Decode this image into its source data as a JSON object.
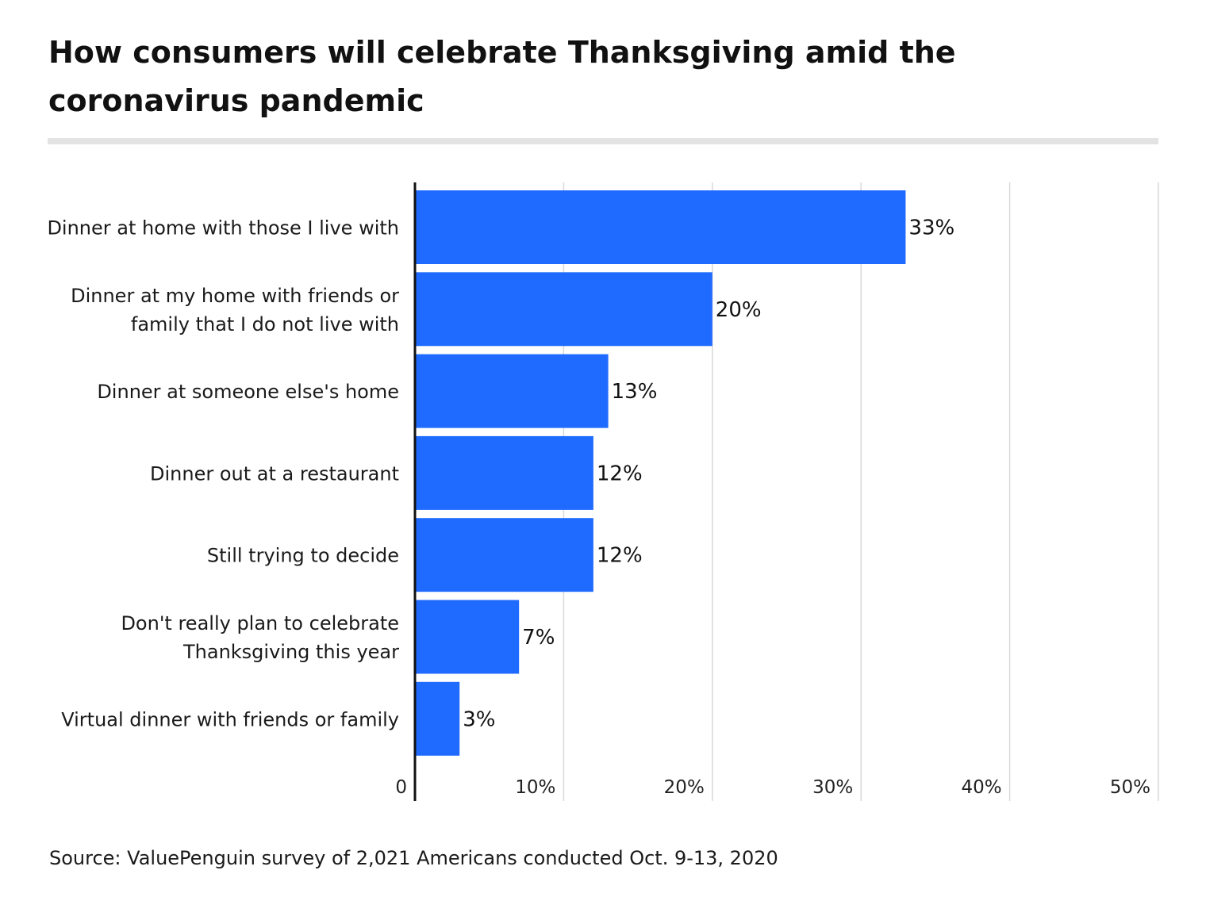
{
  "chart_data": {
    "type": "bar",
    "orientation": "horizontal",
    "title": "How consumers will celebrate Thanksgiving amid the coronavirus pandemic",
    "categories": [
      [
        "Dinner at home with those I live with"
      ],
      [
        "Dinner at my home with friends or",
        "family that I do not live with"
      ],
      [
        "Dinner at someone else's home"
      ],
      [
        "Dinner out at a restaurant"
      ],
      [
        "Still trying to decide"
      ],
      [
        "Don't really plan to celebrate",
        "Thanksgiving this year"
      ],
      [
        "Virtual dinner with friends or family"
      ]
    ],
    "values": [
      33,
      20,
      13,
      12,
      12,
      7,
      3
    ],
    "value_labels": [
      "33%",
      "20%",
      "13%",
      "12%",
      "12%",
      "7%",
      "3%"
    ],
    "xlim": [
      0,
      50
    ],
    "xticks": [
      0,
      10,
      20,
      30,
      40,
      50
    ],
    "xtick_labels": [
      "0",
      "10%",
      "20%",
      "30%",
      "40%",
      "50%"
    ],
    "xlabel": "",
    "ylabel": "",
    "grid": "vertical",
    "bar_color": "#1f6bff",
    "source": "Source: ValuePenguin survey of 2,021 Americans conducted Oct. 9-13, 2020"
  }
}
